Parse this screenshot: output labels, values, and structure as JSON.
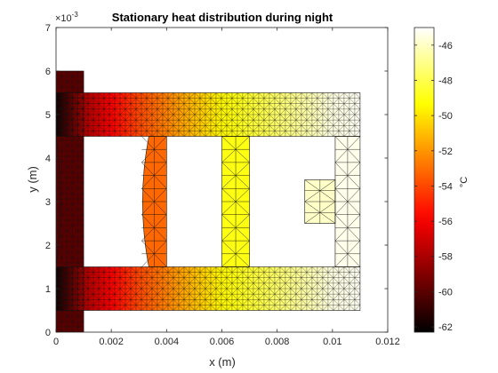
{
  "chart_data": {
    "type": "heatmap",
    "title": "Stationary heat  distribution during night",
    "xlabel": "x (m)",
    "ylabel": "y (m)",
    "exponent_label": "×10",
    "exponent_value": "-3",
    "xlim": [
      0,
      0.012
    ],
    "ylim": [
      0,
      0.007
    ],
    "x_ticks": [
      "0",
      "0.002",
      "0.004",
      "0.006",
      "0.008",
      "0.01",
      "0.012"
    ],
    "x_tick_values": [
      0,
      0.002,
      0.004,
      0.006,
      0.008,
      0.01,
      0.012
    ],
    "y_ticks": [
      "0",
      "1",
      "2",
      "3",
      "4",
      "5",
      "6",
      "7"
    ],
    "y_tick_values": [
      0,
      0.001,
      0.002,
      0.003,
      0.004,
      0.005,
      0.006,
      0.007
    ],
    "colorbar": {
      "label": "°C",
      "colormap": "hot",
      "clim": [
        -62.3,
        -45.0
      ],
      "ticks": [
        "-46",
        "-48",
        "-50",
        "-52",
        "-54",
        "-56",
        "-58",
        "-60",
        "-62"
      ],
      "tick_values": [
        -46,
        -48,
        -50,
        -52,
        -54,
        -56,
        -58,
        -60,
        -62
      ]
    },
    "temperature_profile": {
      "x": [
        0,
        0.001,
        0.002,
        0.003,
        0.004,
        0.005,
        0.006,
        0.007,
        0.008,
        0.009,
        0.01,
        0.011
      ],
      "temperature": [
        -62,
        -58,
        -56,
        -54,
        -52.5,
        -51,
        -49.5,
        -48.5,
        -47.5,
        -46.5,
        -45.5,
        -45.2
      ]
    },
    "regions": [
      {
        "name": "left block",
        "x": [
          0,
          0.001
        ],
        "y": [
          0,
          0.006
        ]
      },
      {
        "name": "top arm",
        "x": [
          0,
          0.011
        ],
        "y": [
          0.0045,
          0.0055
        ]
      },
      {
        "name": "bottom arm",
        "x": [
          0,
          0.011
        ],
        "y": [
          0.0005,
          0.0015
        ]
      },
      {
        "name": "lens",
        "x": [
          0.0031,
          0.004
        ],
        "y": [
          0.0015,
          0.0045
        ]
      },
      {
        "name": "inner bar",
        "x": [
          0.006,
          0.007
        ],
        "y": [
          0.0015,
          0.0045
        ]
      },
      {
        "name": "right column",
        "x": [
          0.0101,
          0.011
        ],
        "y": [
          0.0015,
          0.0045
        ]
      },
      {
        "name": "right tab",
        "x": [
          0.009,
          0.0101
        ],
        "y": [
          0.0025,
          0.0035
        ]
      }
    ],
    "grid": false,
    "mesh_edges": true
  }
}
